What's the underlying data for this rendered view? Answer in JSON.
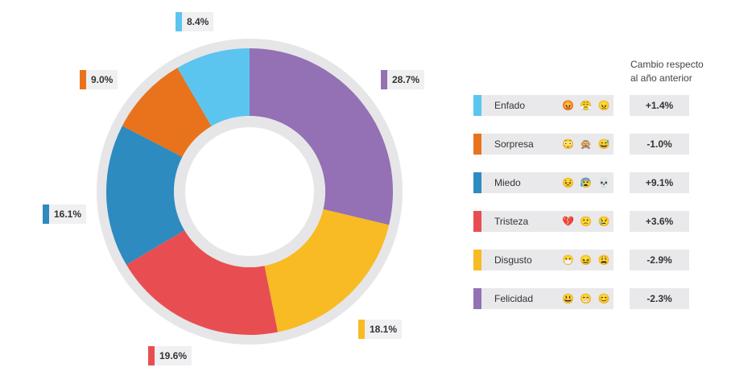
{
  "chart_data": {
    "type": "pie",
    "subtype": "donut",
    "start": "top",
    "direction": "clockwise",
    "legend_header": "Cambio respecto al año anterior",
    "legend_header_lines": [
      "Cambio respecto",
      "al año anterior"
    ],
    "slices": [
      {
        "name": "Felicidad",
        "value": 28.7,
        "label": "28.7%",
        "color": "#9470b4",
        "emoji": "😃 😁 😊",
        "change": "-2.3%"
      },
      {
        "name": "Disgusto",
        "value": 18.1,
        "label": "18.1%",
        "color": "#f8bb24",
        "emoji": "😷 😖 😩",
        "change": "-2.9%"
      },
      {
        "name": "Tristeza",
        "value": 19.6,
        "label": "19.6%",
        "color": "#e84e51",
        "emoji": "💔 🙁 😢",
        "change": "+3.6%"
      },
      {
        "name": "Miedo",
        "value": 16.1,
        "label": "16.1%",
        "color": "#2d8bc0",
        "emoji": "😣 😰 💀",
        "change": "+9.1%"
      },
      {
        "name": "Sorpresa",
        "value": 9.0,
        "label": "9.0%",
        "color": "#e8731c",
        "emoji": "😳 🙊 😅",
        "change": "-1.0%"
      },
      {
        "name": "Enfado",
        "value": 8.4,
        "label": "8.4%",
        "color": "#5bc5ef",
        "emoji": "😡 😤 😠",
        "change": "+1.4%"
      }
    ],
    "legend_order": [
      "Enfado",
      "Sorpresa",
      "Miedo",
      "Tristeza",
      "Disgusto",
      "Felicidad"
    ]
  }
}
